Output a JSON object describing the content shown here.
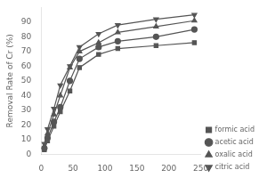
{
  "chart_data": {
    "type": "line",
    "y_label": "Removal Rate of Cr (%)",
    "x": [
      5,
      10,
      20,
      30,
      45,
      60,
      90,
      120,
      180,
      240
    ],
    "series": [
      {
        "name": "formic acid",
        "marker": "square",
        "values": [
          3,
          9,
          19,
          29,
          43,
          59,
          68,
          72,
          74,
          76
        ]
      },
      {
        "name": "acetic acid",
        "marker": "circle",
        "values": [
          4,
          11,
          22,
          32,
          50,
          65,
          73,
          77,
          80,
          85
        ]
      },
      {
        "name": "oxalic acid",
        "marker": "triangle-up",
        "values": [
          5,
          14,
          27,
          40,
          59,
          70,
          76,
          83,
          87,
          91
        ]
      },
      {
        "name": "citric acid",
        "marker": "triangle-down",
        "values": [
          7,
          17,
          31,
          47,
          60,
          73,
          82,
          88,
          92,
          95
        ]
      }
    ],
    "color": "#555555",
    "xlim": [
      0,
      250
    ],
    "ylim": [
      0,
      100
    ],
    "xticks": [
      0,
      50,
      100,
      150,
      200,
      250
    ],
    "yticks": [
      0,
      10,
      20,
      30,
      40,
      50,
      60,
      70,
      80,
      90
    ],
    "grid": false,
    "legend": "lower right"
  }
}
